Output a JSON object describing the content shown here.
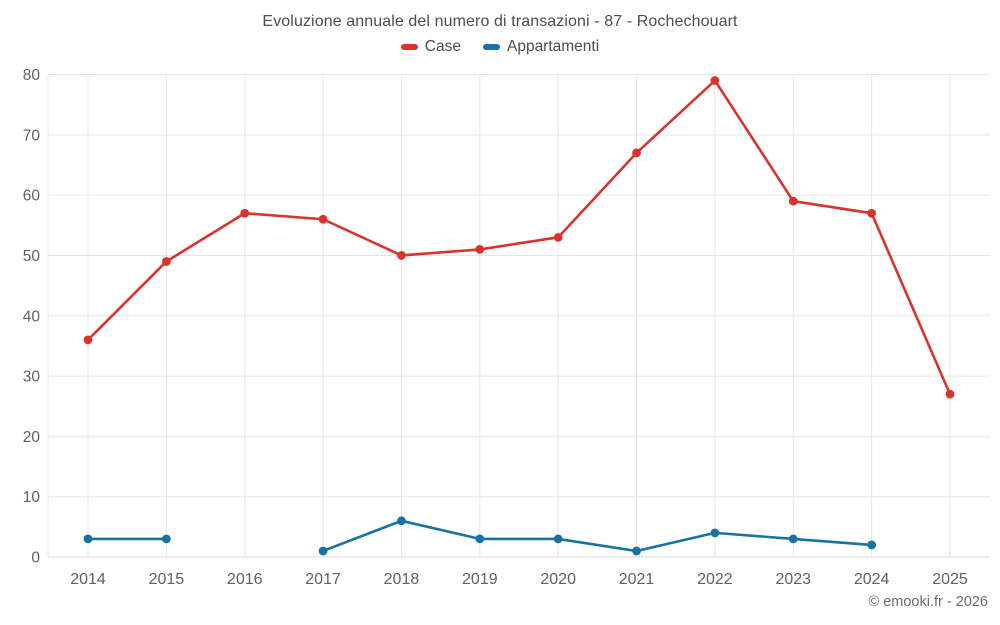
{
  "header": {
    "title": "Evoluzione annuale del numero di transazioni - 87 - Rochechouart"
  },
  "chart_data": {
    "type": "line",
    "title": "Evoluzione annuale del numero di transazioni - 87 - Rochechouart",
    "categories": [
      "2014",
      "2015",
      "2016",
      "2017",
      "2018",
      "2019",
      "2020",
      "2021",
      "2022",
      "2023",
      "2024",
      "2025"
    ],
    "series": [
      {
        "name": "Case",
        "color": "#d9342c",
        "values": [
          36,
          49,
          57,
          56,
          50,
          51,
          53,
          67,
          79,
          59,
          57,
          27
        ]
      },
      {
        "name": "Appartamenti",
        "color": "#1673a4",
        "values": [
          3,
          3,
          null,
          1,
          6,
          3,
          3,
          1,
          4,
          3,
          2,
          null
        ]
      }
    ],
    "xlabel": "",
    "ylabel": "",
    "ylim": [
      0,
      80
    ],
    "ytick_step": 10,
    "yticks": [
      0,
      10,
      20,
      30,
      40,
      50,
      60,
      70,
      80
    ],
    "grid": true,
    "legend_position": "top"
  },
  "footer": {
    "copyright": "© emooki.fr - 2026"
  },
  "colors": {
    "grid": "#e6e6e6",
    "axis_line": "#d9d9d9",
    "tick_label": "#616161",
    "title_text": "#4d4d4d",
    "footer_text": "#6b6b6b",
    "background": "#ffffff"
  }
}
